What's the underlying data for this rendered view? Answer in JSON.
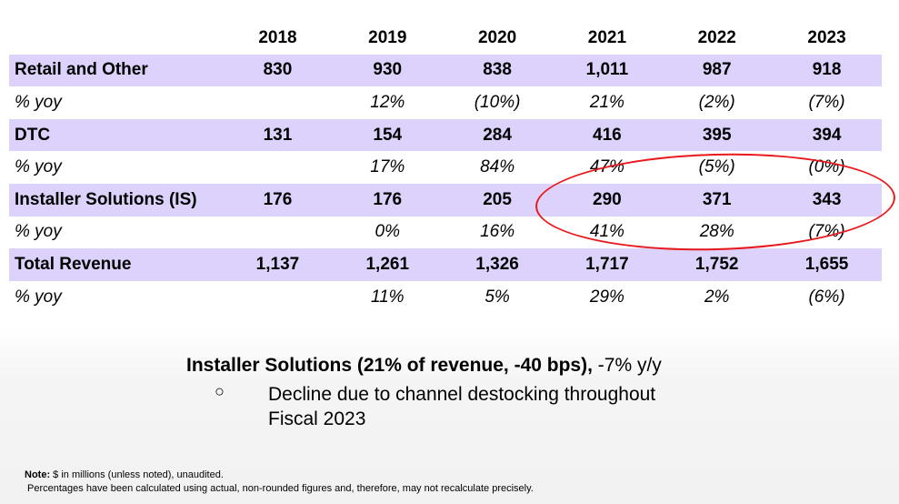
{
  "table": {
    "years": [
      "2018",
      "2019",
      "2020",
      "2021",
      "2022",
      "2023"
    ],
    "rows": [
      {
        "label": "Retail and Other",
        "values": [
          "830",
          "930",
          "838",
          "1,011",
          "987",
          "918"
        ]
      },
      {
        "label": "% yoy",
        "values": [
          "",
          "12%",
          "(10%)",
          "21%",
          "(2%)",
          "(7%)"
        ]
      },
      {
        "label": "DTC",
        "values": [
          "131",
          "154",
          "284",
          "416",
          "395",
          "394"
        ]
      },
      {
        "label": "% yoy",
        "values": [
          "",
          "17%",
          "84%",
          "47%",
          "(5%)",
          "(0%)"
        ]
      },
      {
        "label": "Installer Solutions (IS)",
        "values": [
          "176",
          "176",
          "205",
          "290",
          "371",
          "343"
        ]
      },
      {
        "label": "% yoy",
        "values": [
          "",
          "0%",
          "16%",
          "41%",
          "28%",
          "(7%)"
        ]
      },
      {
        "label": "Total Revenue",
        "values": [
          "1,137",
          "1,261",
          "1,326",
          "1,717",
          "1,752",
          "1,655"
        ]
      },
      {
        "label": "% yoy",
        "values": [
          "",
          "11%",
          "5%",
          "29%",
          "2%",
          "(6%)"
        ]
      }
    ],
    "row_fill_color": "#dcd2fb",
    "highlight_color": "#e8191c"
  },
  "summary": {
    "heading": "Installer Solutions (21% of revenue, -40 bps),",
    "delta": " -7% y/y",
    "bullet_symbol": "○",
    "bullet_text": "Decline due to channel destocking throughout Fiscal 2023"
  },
  "note": {
    "label": "Note:",
    "line1": " $ in millions (unless noted), unaudited.",
    "line2": "Percentages have been calculated using actual, non-rounded figures and, therefore, may not recalculate precisely."
  }
}
